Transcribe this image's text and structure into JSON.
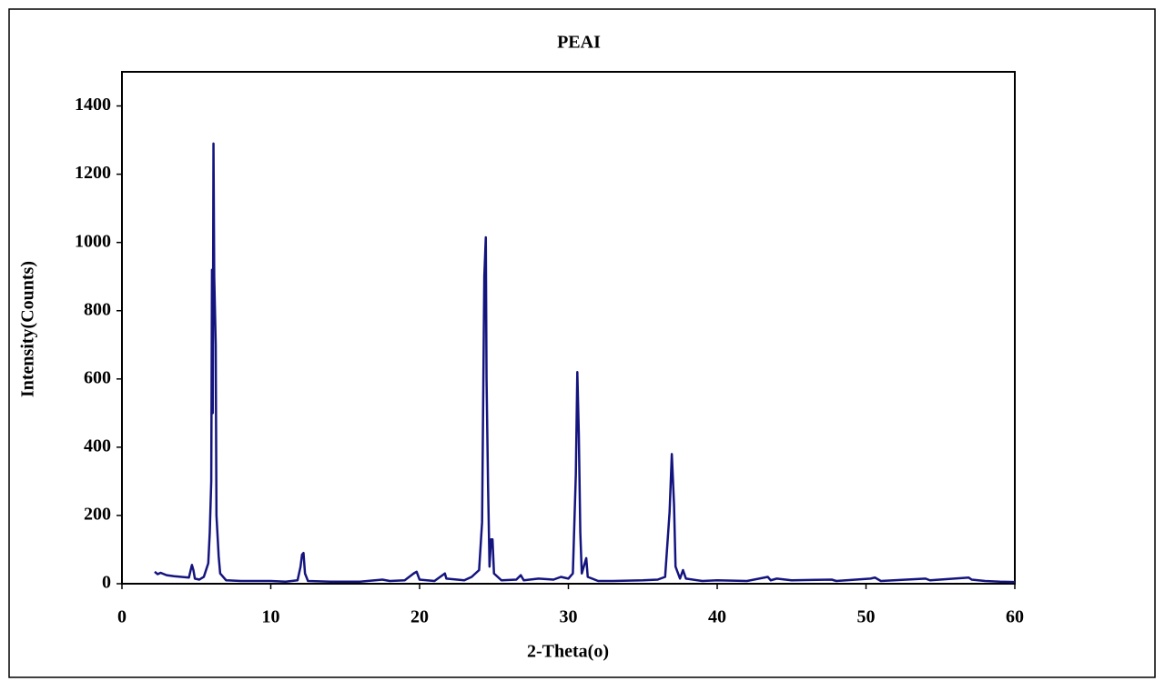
{
  "chart_data": {
    "type": "line",
    "title": "PEAI",
    "xlabel": "2-Theta(o)",
    "ylabel": "Intensity(Counts)",
    "color": "#14147f",
    "x": [
      2.2,
      2.4,
      2.6,
      3,
      3.5,
      4,
      4.5,
      4.7,
      4.8,
      4.9,
      5.2,
      5.5,
      5.8,
      5.9,
      6.0,
      6.05,
      6.1,
      6.15,
      6.2,
      6.3,
      6.35,
      6.5,
      6.6,
      7,
      8,
      9,
      10,
      11,
      11.8,
      12.0,
      12.1,
      12.2,
      12.3,
      12.5,
      14,
      16,
      17.5,
      18,
      19,
      19.6,
      19.8,
      20.0,
      21,
      21.7,
      21.8,
      23,
      23.5,
      24.0,
      24.2,
      24.35,
      24.45,
      24.5,
      24.6,
      24.7,
      24.8,
      24.9,
      25.0,
      25.5,
      26.5,
      26.8,
      27,
      28,
      29,
      29.5,
      30,
      30.3,
      30.5,
      30.6,
      30.7,
      30.8,
      30.9,
      31.1,
      31.2,
      31.3,
      32,
      33,
      35,
      36,
      36.5,
      36.8,
      36.95,
      37.1,
      37.2,
      37.5,
      37.7,
      37.9,
      39,
      40,
      42,
      43.4,
      43.6,
      44,
      45,
      47.7,
      48,
      50.3,
      50.6,
      51,
      54,
      54.3,
      56.9,
      57.1,
      58,
      59,
      60
    ],
    "values": [
      35,
      28,
      32,
      25,
      22,
      20,
      18,
      55,
      40,
      15,
      12,
      20,
      60,
      150,
      300,
      920,
      500,
      1290,
      900,
      700,
      200,
      80,
      30,
      10,
      8,
      8,
      8,
      6,
      10,
      50,
      85,
      90,
      30,
      8,
      6,
      6,
      12,
      8,
      10,
      30,
      35,
      12,
      8,
      30,
      15,
      10,
      20,
      40,
      180,
      900,
      1015,
      600,
      290,
      50,
      130,
      130,
      30,
      10,
      12,
      25,
      10,
      15,
      12,
      20,
      15,
      30,
      320,
      620,
      440,
      150,
      30,
      60,
      75,
      20,
      8,
      8,
      10,
      12,
      20,
      210,
      380,
      230,
      50,
      15,
      40,
      15,
      8,
      10,
      8,
      20,
      10,
      15,
      10,
      12,
      8,
      15,
      18,
      8,
      15,
      10,
      18,
      12,
      8,
      6,
      5
    ],
    "xlim": [
      0,
      60
    ],
    "xticks": [
      0,
      10,
      20,
      30,
      40,
      50,
      60
    ],
    "ylim": [
      0,
      1500
    ],
    "yticks": [
      0,
      200,
      400,
      600,
      800,
      1000,
      1200,
      1400
    ]
  }
}
